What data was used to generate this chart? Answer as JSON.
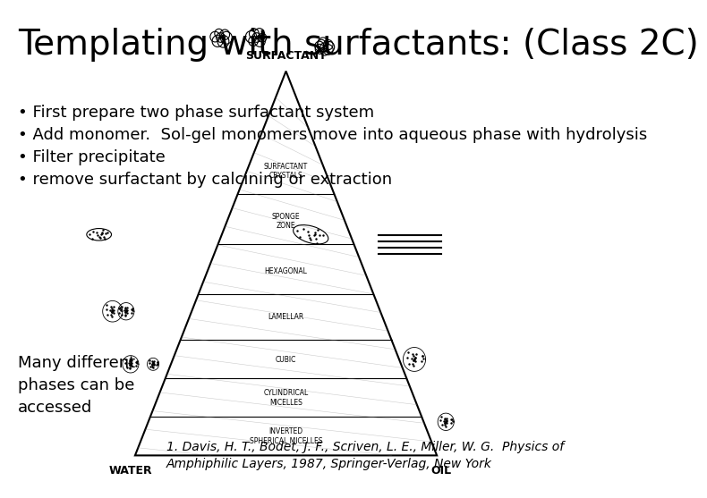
{
  "title": "Templating with surfactants: (Class 2C)",
  "bg_color": "#ffffff",
  "title_color": "#000000",
  "title_fontsize": 28,
  "title_font": "Arial",
  "body_text_left": "• First prepare two phase surfactant system\n• Add monomer.  Sol-gel monomers move into aqueous phase with hydrolysis\n• Filter precipitate\n• remove surfactant by calcining or extraction",
  "body_text_bottom": "Many different\nphases can be\naccessed",
  "citation_line1": "1. Davis, H. T., Bodet, J. F., Scriven, L. E., Miller, W. G.  Physics of",
  "citation_line2": "Amphiphilic Layers, 1987, Springer-Verlag, New York",
  "body_fontsize": 13,
  "citation_fontsize": 10,
  "text_color": "#000000"
}
